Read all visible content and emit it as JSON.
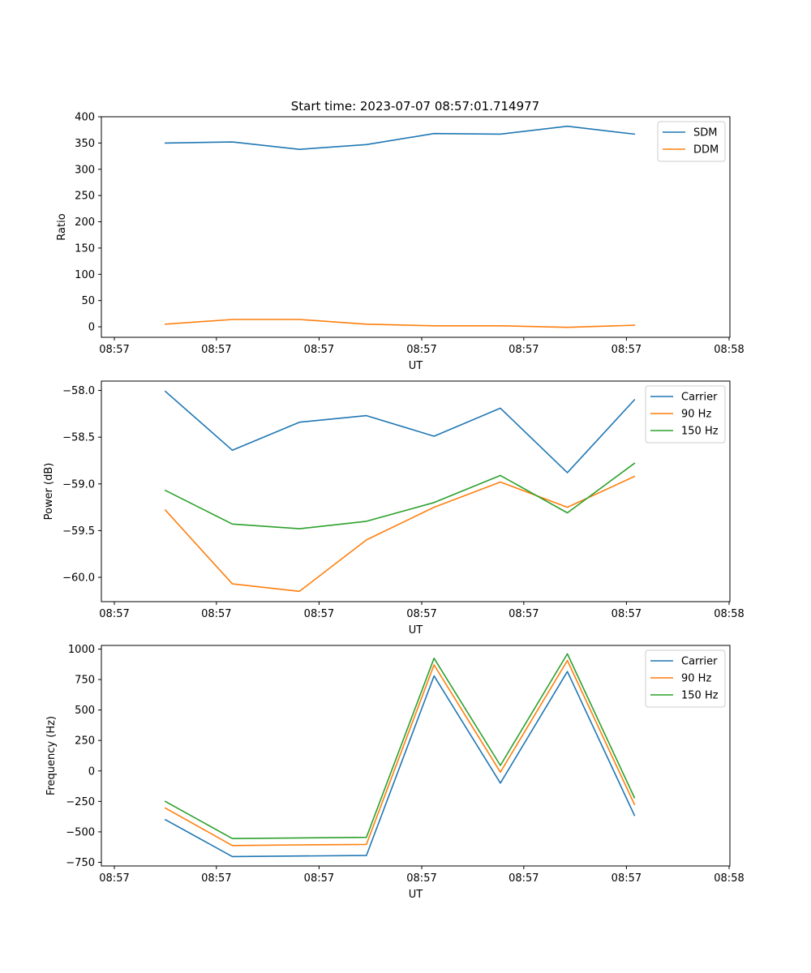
{
  "figure_title": "Start time: 2023-07-07 08:57:01.714977",
  "chart_data": [
    {
      "type": "line",
      "xlabel": "UT",
      "ylabel": "Ratio",
      "xlim": [
        0,
        1
      ],
      "ylim": [
        -20,
        400
      ],
      "x": [
        0.083,
        0.192,
        0.301,
        0.41,
        0.52,
        0.628,
        0.737,
        0.846
      ],
      "xticks": [
        0,
        0.166,
        0.333,
        0.5,
        0.666,
        0.833,
        1.0
      ],
      "xticklabels": [
        "08:57",
        "08:57",
        "08:57",
        "08:57",
        "08:57",
        "08:57",
        "08:58"
      ],
      "yticks": [
        0,
        50,
        100,
        150,
        200,
        250,
        300,
        350,
        400
      ],
      "yticklabels": [
        "0",
        "50",
        "100",
        "150",
        "200",
        "250",
        "300",
        "350",
        "400"
      ],
      "legend_position": "top-right",
      "series": [
        {
          "name": "SDM",
          "color": "#1f77b4",
          "values": [
            350,
            352,
            338,
            347,
            368,
            367,
            382,
            367
          ]
        },
        {
          "name": "DDM",
          "color": "#ff7f0e",
          "values": [
            5,
            14,
            14,
            5,
            2,
            2,
            -1,
            3
          ]
        }
      ]
    },
    {
      "type": "line",
      "xlabel": "UT",
      "ylabel": "Power (dB)",
      "xlim": [
        0,
        1
      ],
      "ylim": [
        -60.26,
        -57.9
      ],
      "x": [
        0.083,
        0.192,
        0.301,
        0.41,
        0.52,
        0.628,
        0.737,
        0.846
      ],
      "xticks": [
        0,
        0.166,
        0.333,
        0.5,
        0.666,
        0.833,
        1.0
      ],
      "xticklabels": [
        "08:57",
        "08:57",
        "08:57",
        "08:57",
        "08:57",
        "08:57",
        "08:58"
      ],
      "yticks": [
        -60.0,
        -59.5,
        -59.0,
        -58.5,
        -58.0
      ],
      "yticklabels": [
        "−60.0",
        "−59.5",
        "−59.0",
        "−58.5",
        "−58.0"
      ],
      "legend_position": "top-right",
      "series": [
        {
          "name": "Carrier",
          "color": "#1f77b4",
          "values": [
            -58.01,
            -58.64,
            -58.34,
            -58.27,
            -58.49,
            -58.19,
            -58.88,
            -58.1
          ]
        },
        {
          "name": "90 Hz",
          "color": "#ff7f0e",
          "values": [
            -59.28,
            -60.07,
            -60.15,
            -59.6,
            -59.25,
            -58.98,
            -59.25,
            -58.92
          ]
        },
        {
          "name": "150 Hz",
          "color": "#2ca02c",
          "values": [
            -59.07,
            -59.43,
            -59.48,
            -59.4,
            -59.2,
            -58.91,
            -59.31,
            -58.78
          ]
        }
      ]
    },
    {
      "type": "line",
      "xlabel": "UT",
      "ylabel": "Frequency (Hz)",
      "xlim": [
        0,
        1
      ],
      "ylim": [
        -780,
        1030
      ],
      "x": [
        0.083,
        0.192,
        0.301,
        0.41,
        0.52,
        0.628,
        0.737,
        0.846
      ],
      "xticks": [
        0,
        0.166,
        0.333,
        0.5,
        0.666,
        0.833,
        1.0
      ],
      "xticklabels": [
        "08:57",
        "08:57",
        "08:57",
        "08:57",
        "08:57",
        "08:57",
        "08:58"
      ],
      "yticks": [
        -750,
        -500,
        -250,
        0,
        250,
        500,
        750,
        1000
      ],
      "yticklabels": [
        "−750",
        "−500",
        "−250",
        "0",
        "250",
        "500",
        "750",
        "1000"
      ],
      "legend_position": "top-right",
      "series": [
        {
          "name": "Carrier",
          "color": "#1f77b4",
          "values": [
            -400,
            -703,
            -698,
            -694,
            780,
            -100,
            816,
            -365
          ]
        },
        {
          "name": "90 Hz",
          "color": "#ff7f0e",
          "values": [
            -305,
            -612,
            -607,
            -603,
            870,
            -10,
            906,
            -275
          ]
        },
        {
          "name": "150 Hz",
          "color": "#2ca02c",
          "values": [
            -250,
            -555,
            -550,
            -545,
            925,
            45,
            961,
            -220
          ]
        }
      ]
    }
  ]
}
